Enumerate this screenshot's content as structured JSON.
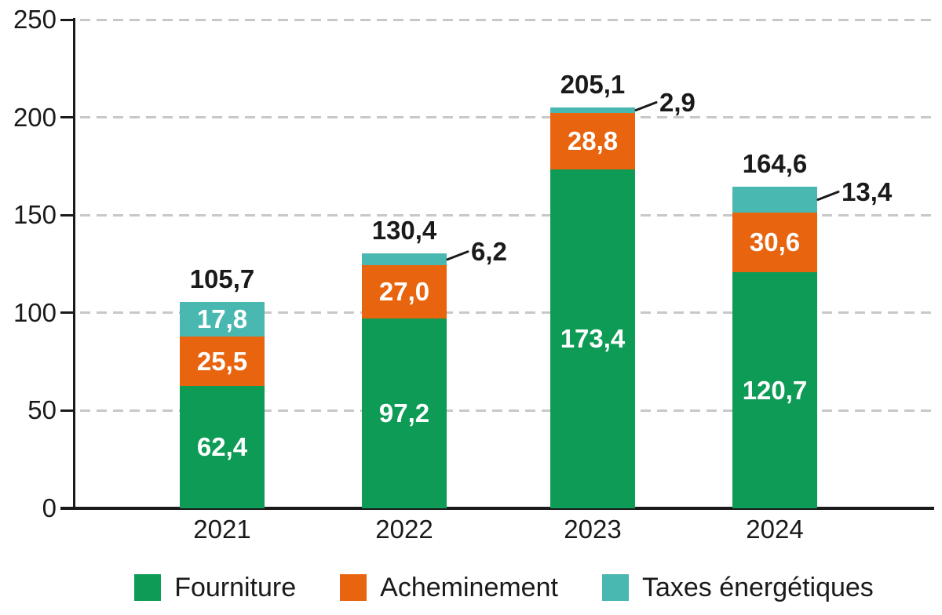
{
  "chart_data": {
    "type": "bar",
    "stacked": true,
    "title": "",
    "categories": [
      "2021",
      "2022",
      "2023",
      "2024"
    ],
    "series": [
      {
        "name": "Fourniture",
        "color": "#0d9b55",
        "values": [
          62.4,
          97.2,
          173.4,
          120.7
        ],
        "value_labels": [
          "62,4",
          "97,2",
          "173,4",
          "120,7"
        ],
        "labels_inside": [
          true,
          true,
          true,
          true
        ]
      },
      {
        "name": "Acheminement",
        "color": "#e8640e",
        "values": [
          25.5,
          27.0,
          28.8,
          30.6
        ],
        "value_labels": [
          "25,5",
          "27,0",
          "28,8",
          "30,6"
        ],
        "labels_inside": [
          true,
          true,
          true,
          true
        ]
      },
      {
        "name": "Taxes énergétiques",
        "color": "#49b8b0",
        "values": [
          17.8,
          6.2,
          2.9,
          13.4
        ],
        "value_labels": [
          "17,8",
          "6,2",
          "2,9",
          "13,4"
        ],
        "labels_inside": [
          true,
          false,
          false,
          false
        ]
      }
    ],
    "totals": [
      105.7,
      130.4,
      205.1,
      164.6
    ],
    "total_labels": [
      "105,7",
      "130,4",
      "205,1",
      "164,6"
    ],
    "callouts": [
      {
        "category": "2022",
        "series": "Taxes énergétiques",
        "label": "6,2"
      },
      {
        "category": "2023",
        "series": "Taxes énergétiques",
        "label": "2,9"
      },
      {
        "category": "2024",
        "series": "Taxes énergétiques",
        "label": "13,4"
      }
    ],
    "ylim": [
      0,
      250
    ],
    "yticks": [
      0,
      50,
      100,
      150,
      200,
      250
    ],
    "grid": "horizontal-dashed",
    "legend_position": "bottom",
    "colors": {
      "axis": "#1a1a1a",
      "grid": "#c8c8c8",
      "segment_value_text": "#ffffff",
      "total_value_text": "#1a1a1a"
    }
  }
}
